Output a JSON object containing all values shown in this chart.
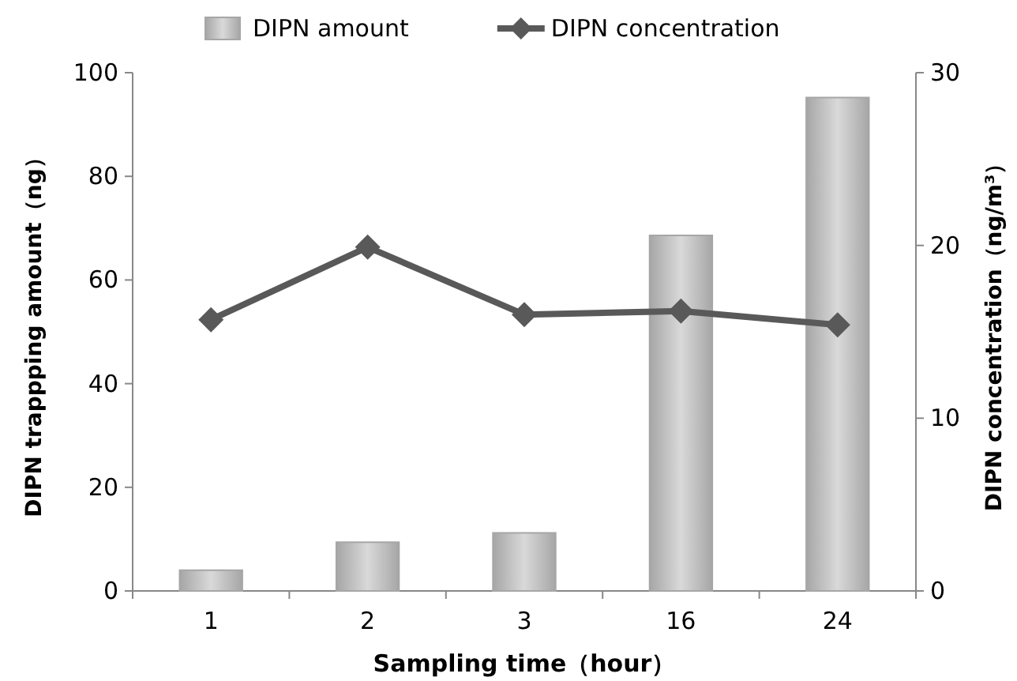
{
  "chart_data": {
    "type": "bar",
    "categories": [
      "1",
      "2",
      "3",
      "16",
      "24"
    ],
    "xlabel": "Sampling time（hour）",
    "ylabel": "DIPN trappping amount（ng）",
    "y2label": "DIPN concentration（ng/m³）",
    "ylim": [
      0,
      100
    ],
    "yticks": [
      0,
      20,
      40,
      60,
      80,
      100
    ],
    "y2lim": [
      0,
      30
    ],
    "y2ticks": [
      0,
      10,
      20,
      30
    ],
    "legend": "top",
    "grid": false,
    "series": [
      {
        "name": "DIPN amount",
        "color": "#a6a6a6",
        "values": [
          4.0,
          9.4,
          11.2,
          68.6,
          95.2
        ]
      },
      {
        "name": "DIPN concentration",
        "type": "line",
        "axis": "y2",
        "color": "#595959",
        "marker": "diamond",
        "values": [
          15.7,
          19.9,
          16.0,
          16.2,
          15.4
        ]
      }
    ]
  }
}
